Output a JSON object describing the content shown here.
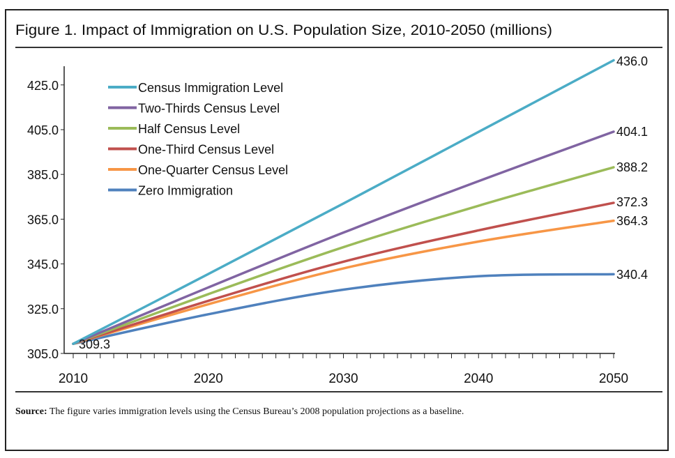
{
  "chart_data": {
    "type": "line",
    "title": "Figure 1. Impact of Immigration on U.S. Population Size, 2010-2050 (millions)",
    "xlabel": "",
    "ylabel": "",
    "x": [
      2010,
      2020,
      2030,
      2040,
      2050
    ],
    "xticks": [
      "2010",
      "2020",
      "2030",
      "2040",
      "2050"
    ],
    "yticks": [
      "305.0",
      "325.0",
      "345.0",
      "365.0",
      "385.0",
      "405.0",
      "425.0"
    ],
    "xlim": [
      2010,
      2050
    ],
    "ylim": [
      305,
      437
    ],
    "grid": false,
    "legend_position": "top-left",
    "start_label": "309.3",
    "series": [
      {
        "name": "Census Immigration Level",
        "color": "#4bacc6",
        "values": [
          309.3,
          340.5,
          372.0,
          404.0,
          436.0
        ],
        "end_label": "436.0"
      },
      {
        "name": "Two-Thirds Census Level",
        "color": "#8064a2",
        "values": [
          309.3,
          334.5,
          359.0,
          382.0,
          404.1
        ],
        "end_label": "404.1"
      },
      {
        "name": "Half Census Level",
        "color": "#9bbb59",
        "values": [
          309.3,
          331.5,
          352.5,
          371.0,
          388.2
        ],
        "end_label": "388.2"
      },
      {
        "name": "One-Third Census Level",
        "color": "#c0504d",
        "values": [
          309.3,
          328.5,
          346.0,
          360.0,
          372.3
        ],
        "end_label": "372.3"
      },
      {
        "name": "One-Quarter Census Level",
        "color": "#f79646",
        "values": [
          309.3,
          327.0,
          343.0,
          355.0,
          364.3
        ],
        "end_label": "364.3"
      },
      {
        "name": "Zero Immigration",
        "color": "#4f81bd",
        "values": [
          309.3,
          322.5,
          333.5,
          339.5,
          340.4
        ],
        "end_label": "340.4"
      }
    ],
    "source_label": "Source:",
    "source_text": "The figure varies immigration levels using the Census Bureau’s 2008 population projections as a baseline."
  }
}
